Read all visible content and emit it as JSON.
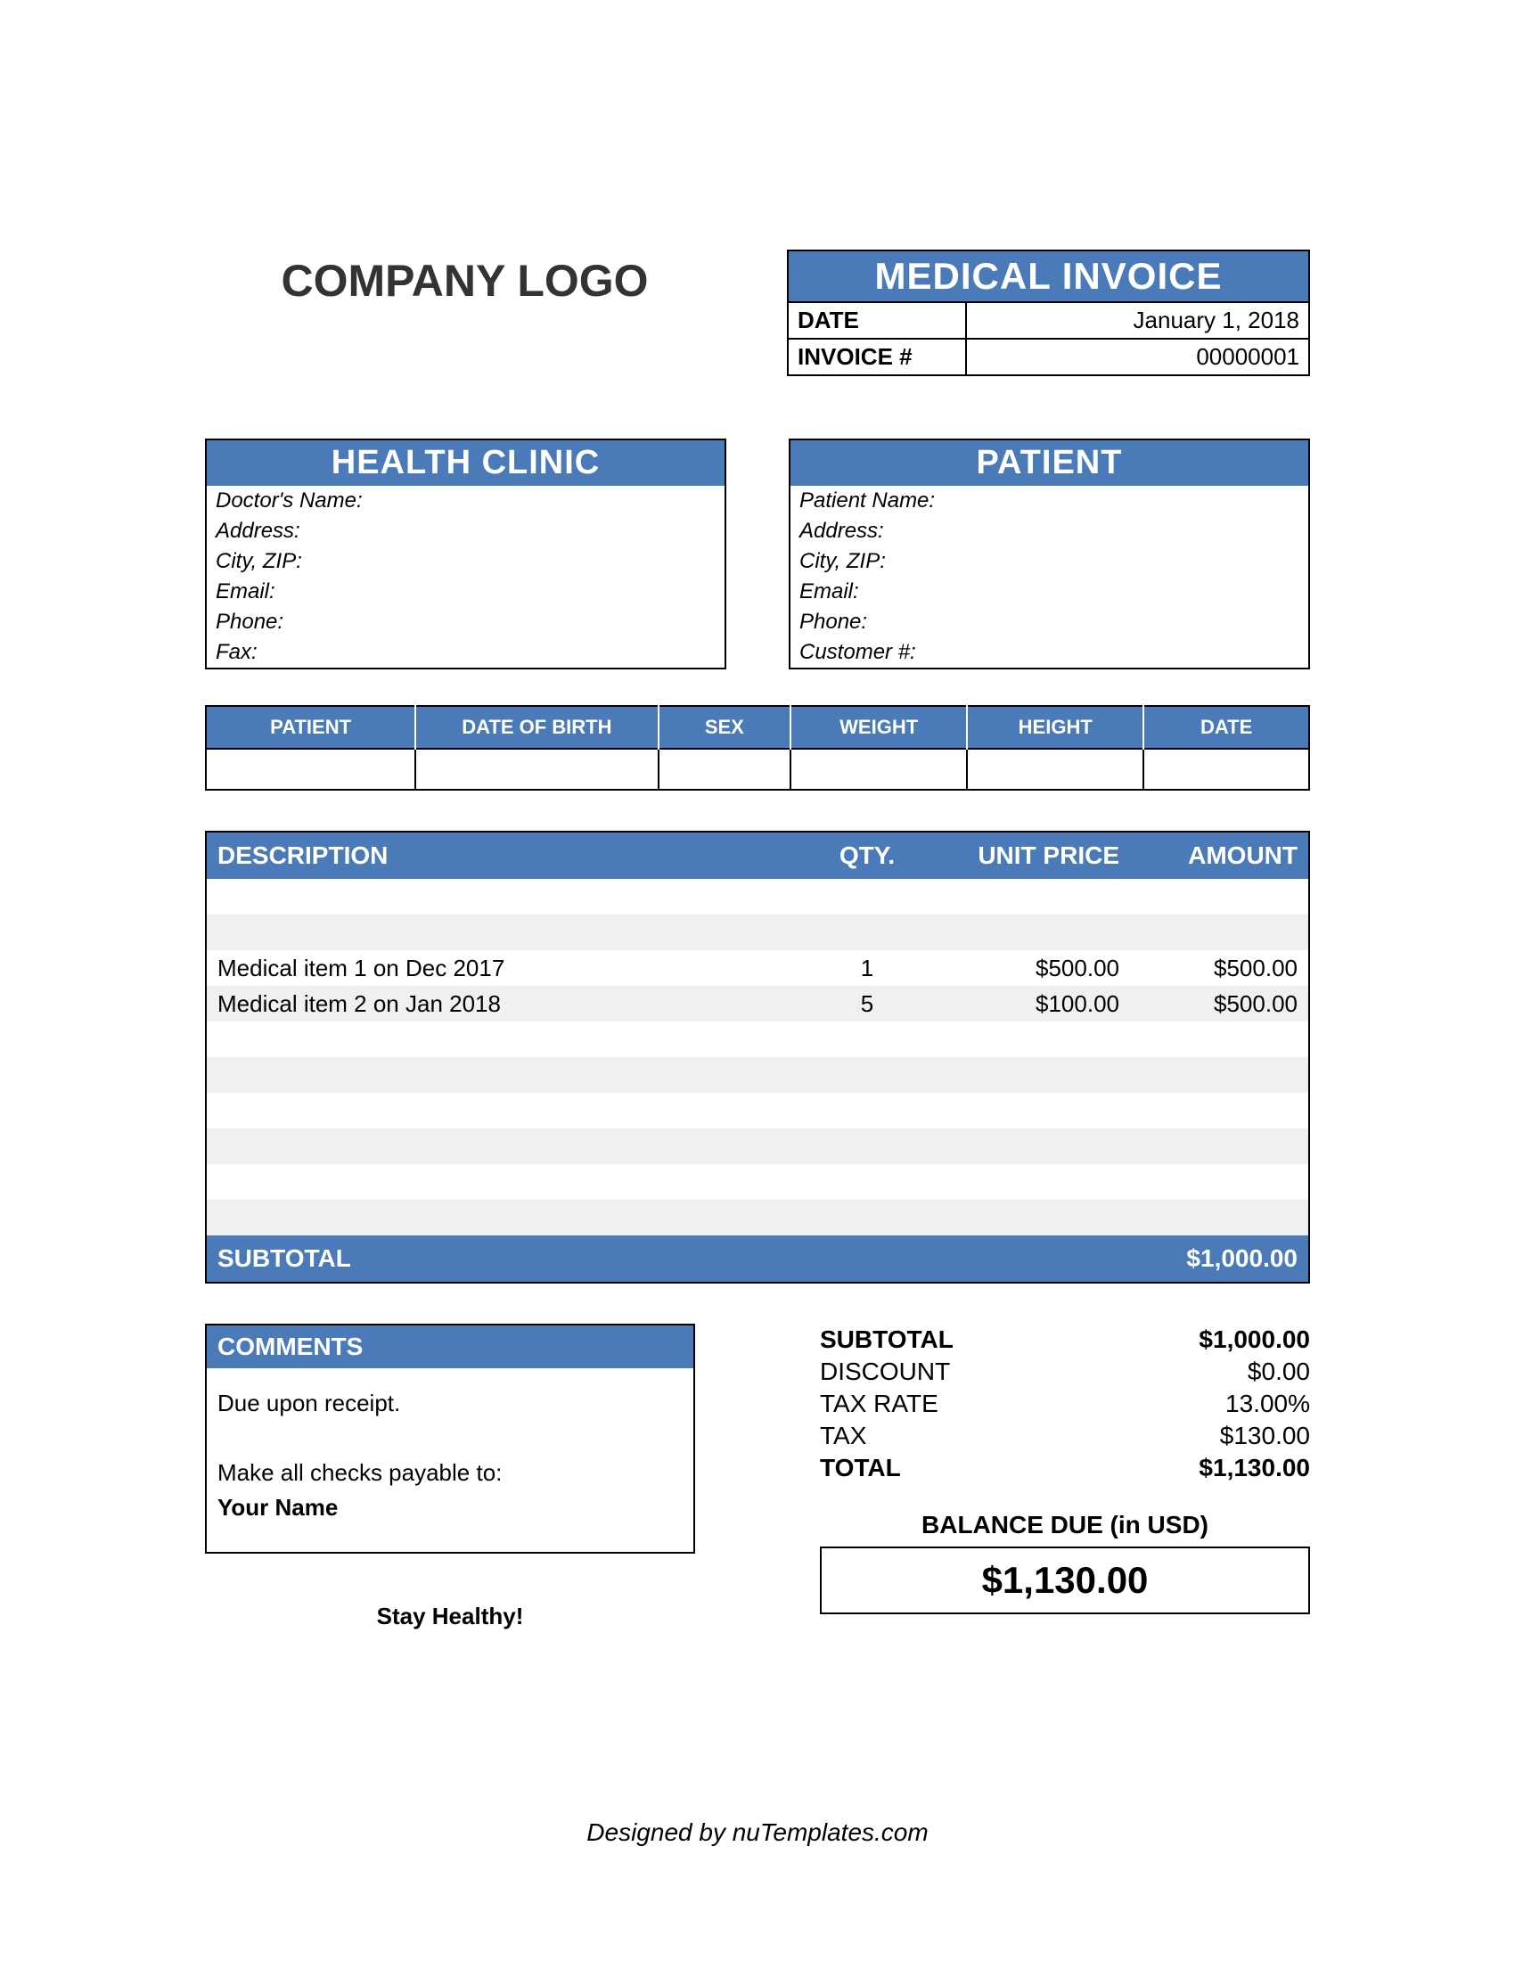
{
  "colors": {
    "accent": "#4a7ab8",
    "stripe": "#f0f0f0",
    "border": "#000000",
    "bg": "#ffffff"
  },
  "logo": "COMPANY LOGO",
  "invoice_header": {
    "title": "MEDICAL INVOICE",
    "date_label": "DATE",
    "date_value": "January 1, 2018",
    "num_label": "INVOICE #",
    "num_value": "00000001"
  },
  "clinic": {
    "title": "HEALTH CLINIC",
    "fields": [
      "Doctor's Name:",
      "Address:",
      "City, ZIP:",
      "Email:",
      "Phone:",
      "Fax:"
    ]
  },
  "patient": {
    "title": "PATIENT",
    "fields": [
      "Patient Name:",
      "Address:",
      "City, ZIP:",
      "Email:",
      "Phone:",
      "Customer #:"
    ]
  },
  "detail_table": {
    "columns": [
      "PATIENT",
      "DATE OF BIRTH",
      "SEX",
      "WEIGHT",
      "HEIGHT",
      "DATE"
    ],
    "col_widths": [
      "19%",
      "22%",
      "12%",
      "16%",
      "16%",
      "15%"
    ]
  },
  "items_table": {
    "columns": {
      "desc": "DESCRIPTION",
      "qty": "QTY.",
      "price": "UNIT PRICE",
      "amount": "AMOUNT"
    },
    "rows": [
      {
        "desc": "",
        "qty": "",
        "price": "",
        "amount": ""
      },
      {
        "desc": "",
        "qty": "",
        "price": "",
        "amount": ""
      },
      {
        "desc": "Medical item 1 on Dec 2017",
        "qty": "1",
        "price": "$500.00",
        "amount": "$500.00"
      },
      {
        "desc": "Medical item 2 on Jan 2018",
        "qty": "5",
        "price": "$100.00",
        "amount": "$500.00"
      },
      {
        "desc": "",
        "qty": "",
        "price": "",
        "amount": ""
      },
      {
        "desc": "",
        "qty": "",
        "price": "",
        "amount": ""
      },
      {
        "desc": "",
        "qty": "",
        "price": "",
        "amount": ""
      },
      {
        "desc": "",
        "qty": "",
        "price": "",
        "amount": ""
      },
      {
        "desc": "",
        "qty": "",
        "price": "",
        "amount": ""
      },
      {
        "desc": "",
        "qty": "",
        "price": "",
        "amount": ""
      }
    ],
    "subtotal_label": "SUBTOTAL",
    "subtotal_value": "$1,000.00"
  },
  "comments": {
    "title": "COMMENTS",
    "line1": "Due upon receipt.",
    "line2": "Make all checks payable to:",
    "line3": "Your Name"
  },
  "tagline": "Stay Healthy!",
  "totals": {
    "rows": [
      {
        "label": "SUBTOTAL",
        "value": "$1,000.00",
        "bold": true
      },
      {
        "label": "DISCOUNT",
        "value": "$0.00",
        "bold": false
      },
      {
        "label": "TAX RATE",
        "value": "13.00%",
        "bold": false
      },
      {
        "label": "TAX",
        "value": "$130.00",
        "bold": false
      },
      {
        "label": "TOTAL",
        "value": "$1,130.00",
        "bold": true
      }
    ],
    "balance_label": "BALANCE DUE (in USD)",
    "balance_value": "$1,130.00"
  },
  "footer": "Designed by nuTemplates.com"
}
